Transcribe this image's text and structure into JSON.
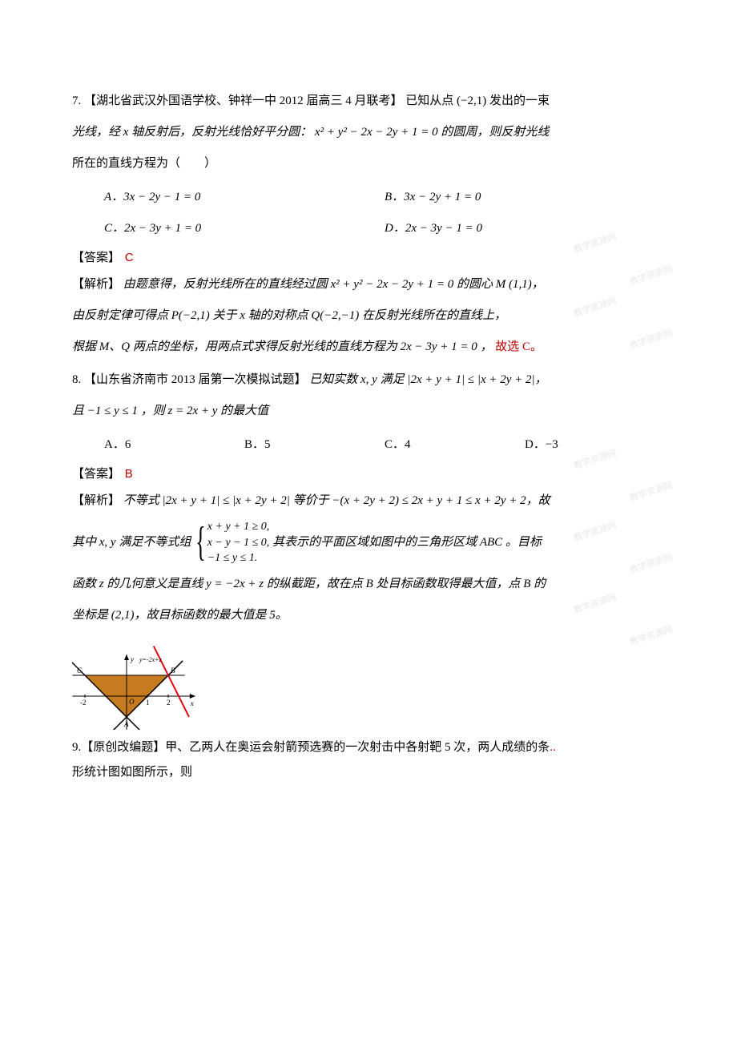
{
  "q7": {
    "source": "【湖北省武汉外国语学校、钟祥一中 2012 届高三 4 月联考】",
    "stem1": "7. ",
    "stem2": "已知从点 (−2,1) 发出的一束",
    "stem3": "光线，经 x 轴反射后，反射光线恰好平分圆：  x² + y² − 2x − 2y + 1 = 0 的圆周，则反射光线",
    "stem4": "所在的直线方程为（　　）",
    "options": {
      "A": "A．3x − 2y − 1 = 0",
      "B": "B．3x − 2y + 1 = 0",
      "C": "C．2x − 3y + 1 = 0",
      "D": "D．2x − 3y − 1 = 0"
    },
    "answer_label": "【答案】",
    "answer": "C",
    "jiexi1_label": "【解析】",
    "jiexi1": "由题意得，反射光线所在的直线经过圆 x² + y² − 2x − 2y + 1 = 0 的圆心 M (1,1)，",
    "jiexi2": "由反射定律可得点 P(−2,1) 关于 x 轴的对称点 Q(−2,−1) 在反射光线所在的直线上，",
    "jiexi3_a": "根据 M、Q 两点的坐标，用两点式求得反射光线的直线方程为 2x − 3y + 1 = 0 ，",
    "jiexi3_b": "故选 C。",
    "watermarks": [
      "教学资源网",
      "教学资源网",
      "教学资源网",
      "教学资源网"
    ]
  },
  "q8": {
    "source": "【山东省济南市 2013 届第一次模拟试题】",
    "stem1": "8. ",
    "stem2": "已知实数 x, y 满足 |2x + y + 1| ≤ |x + 2y + 2|，",
    "stem3": "且 −1 ≤ y ≤ 1 ，则 z = 2x + y 的最大值",
    "options": {
      "A": "A．6",
      "B": "B．5",
      "C": "C．4",
      "D": "D．−3"
    },
    "answer_label": "【答案】",
    "answer": "B",
    "jiexi1_label": "【解析】",
    "jiexi1": "不等式 |2x + y + 1| ≤ |x + 2y + 2| 等价于 −(x + 2y + 2) ≤ 2x + y + 1 ≤ x + 2y + 2，故",
    "jiexi2_pre": "其中 x, y 满足不等式组",
    "system": {
      "l1": "x + y + 1 ≥ 0,",
      "l2": "x − y − 1 ≤ 0,",
      "l3": "−1 ≤ y ≤ 1."
    },
    "jiexi2_post": "其表示的平面区域如图中的三角形区域 ABC 。目标",
    "jiexi3": "函数 z 的几何意义是直线 y = −2x + z 的纵截距，故在点 B 处目标函数取得最大值，点 B 的",
    "jiexi4": "坐标是 (2,1)，故目标函数的最大值是 5。",
    "watermarks": [
      "教学资源网",
      "教学资源网",
      "教学资源网",
      "教学资源网",
      "教学资源网",
      "教学资源网"
    ],
    "figure": {
      "width": 165,
      "height": 120,
      "bgcolor": "#ffffff",
      "region_fill": "#c77b1f",
      "axis_color": "#000000",
      "redline_color": "#e30613",
      "labels": {
        "x": "x",
        "y": "y",
        "A": "A",
        "B": "B",
        "C": "C",
        "eq": "y=-2x+z"
      },
      "ticks": {
        "xm2": "-2",
        "x1": "1",
        "x2": "2"
      },
      "origin": "O",
      "axis_width": 1,
      "line_width": 1.5
    }
  },
  "q9": {
    "stem1": "9.【原创改编题】甲、乙两人在奥运会射箭预选赛的一次射击中各射靶 5 次，两人成绩的条",
    "red_dots": "..",
    "stem2": "形统计图如图所示，则"
  }
}
